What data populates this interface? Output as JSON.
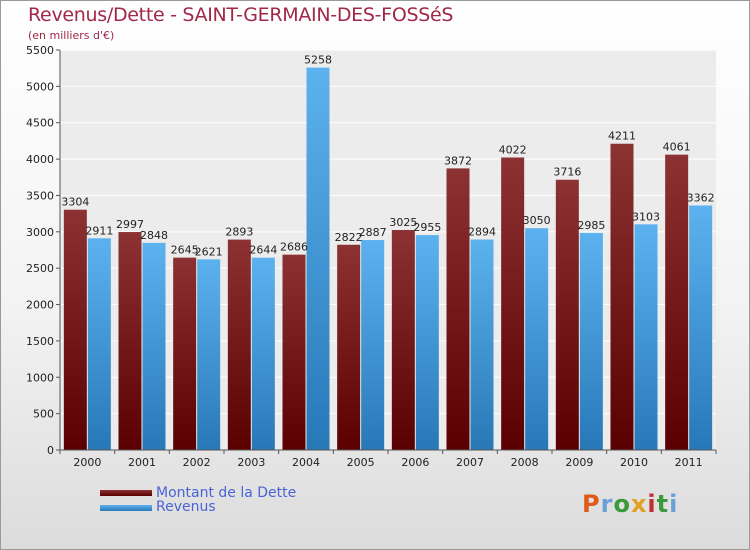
{
  "chart_data": {
    "type": "bar",
    "title": "Revenus/Dette - SAINT-GERMAIN-DES-FOSSéS",
    "subtitle": "(en milliers d'€)",
    "categories": [
      "2000",
      "2001",
      "2002",
      "2003",
      "2004",
      "2005",
      "2006",
      "2007",
      "2008",
      "2009",
      "2010",
      "2011"
    ],
    "series": [
      {
        "name": "Montant de la Dette",
        "color": "#7a1e1e",
        "values": [
          3304,
          2997,
          2645,
          2893,
          2686,
          2822,
          3025,
          3872,
          4022,
          3716,
          4211,
          4061
        ]
      },
      {
        "name": "Revenus",
        "color": "#4ea6e6",
        "values": [
          2911,
          2848,
          2621,
          2644,
          5258,
          2887,
          2955,
          2894,
          3050,
          2985,
          3103,
          3362
        ]
      }
    ],
    "ylim": [
      0,
      5500
    ],
    "yticks": [
      0,
      500,
      1000,
      1500,
      2000,
      2500,
      3000,
      3500,
      4000,
      4500,
      5000,
      5500
    ],
    "grid": true,
    "legend_position": "bottom-left"
  },
  "logo": {
    "letters": [
      "P",
      "r",
      "o",
      "x",
      "i",
      "t",
      "i"
    ],
    "colors": [
      "#e05a1a",
      "#6aa0d8",
      "#3a9a3a",
      "#e0a020",
      "#c03030",
      "#3a9a3a",
      "#6aa0d8"
    ]
  }
}
